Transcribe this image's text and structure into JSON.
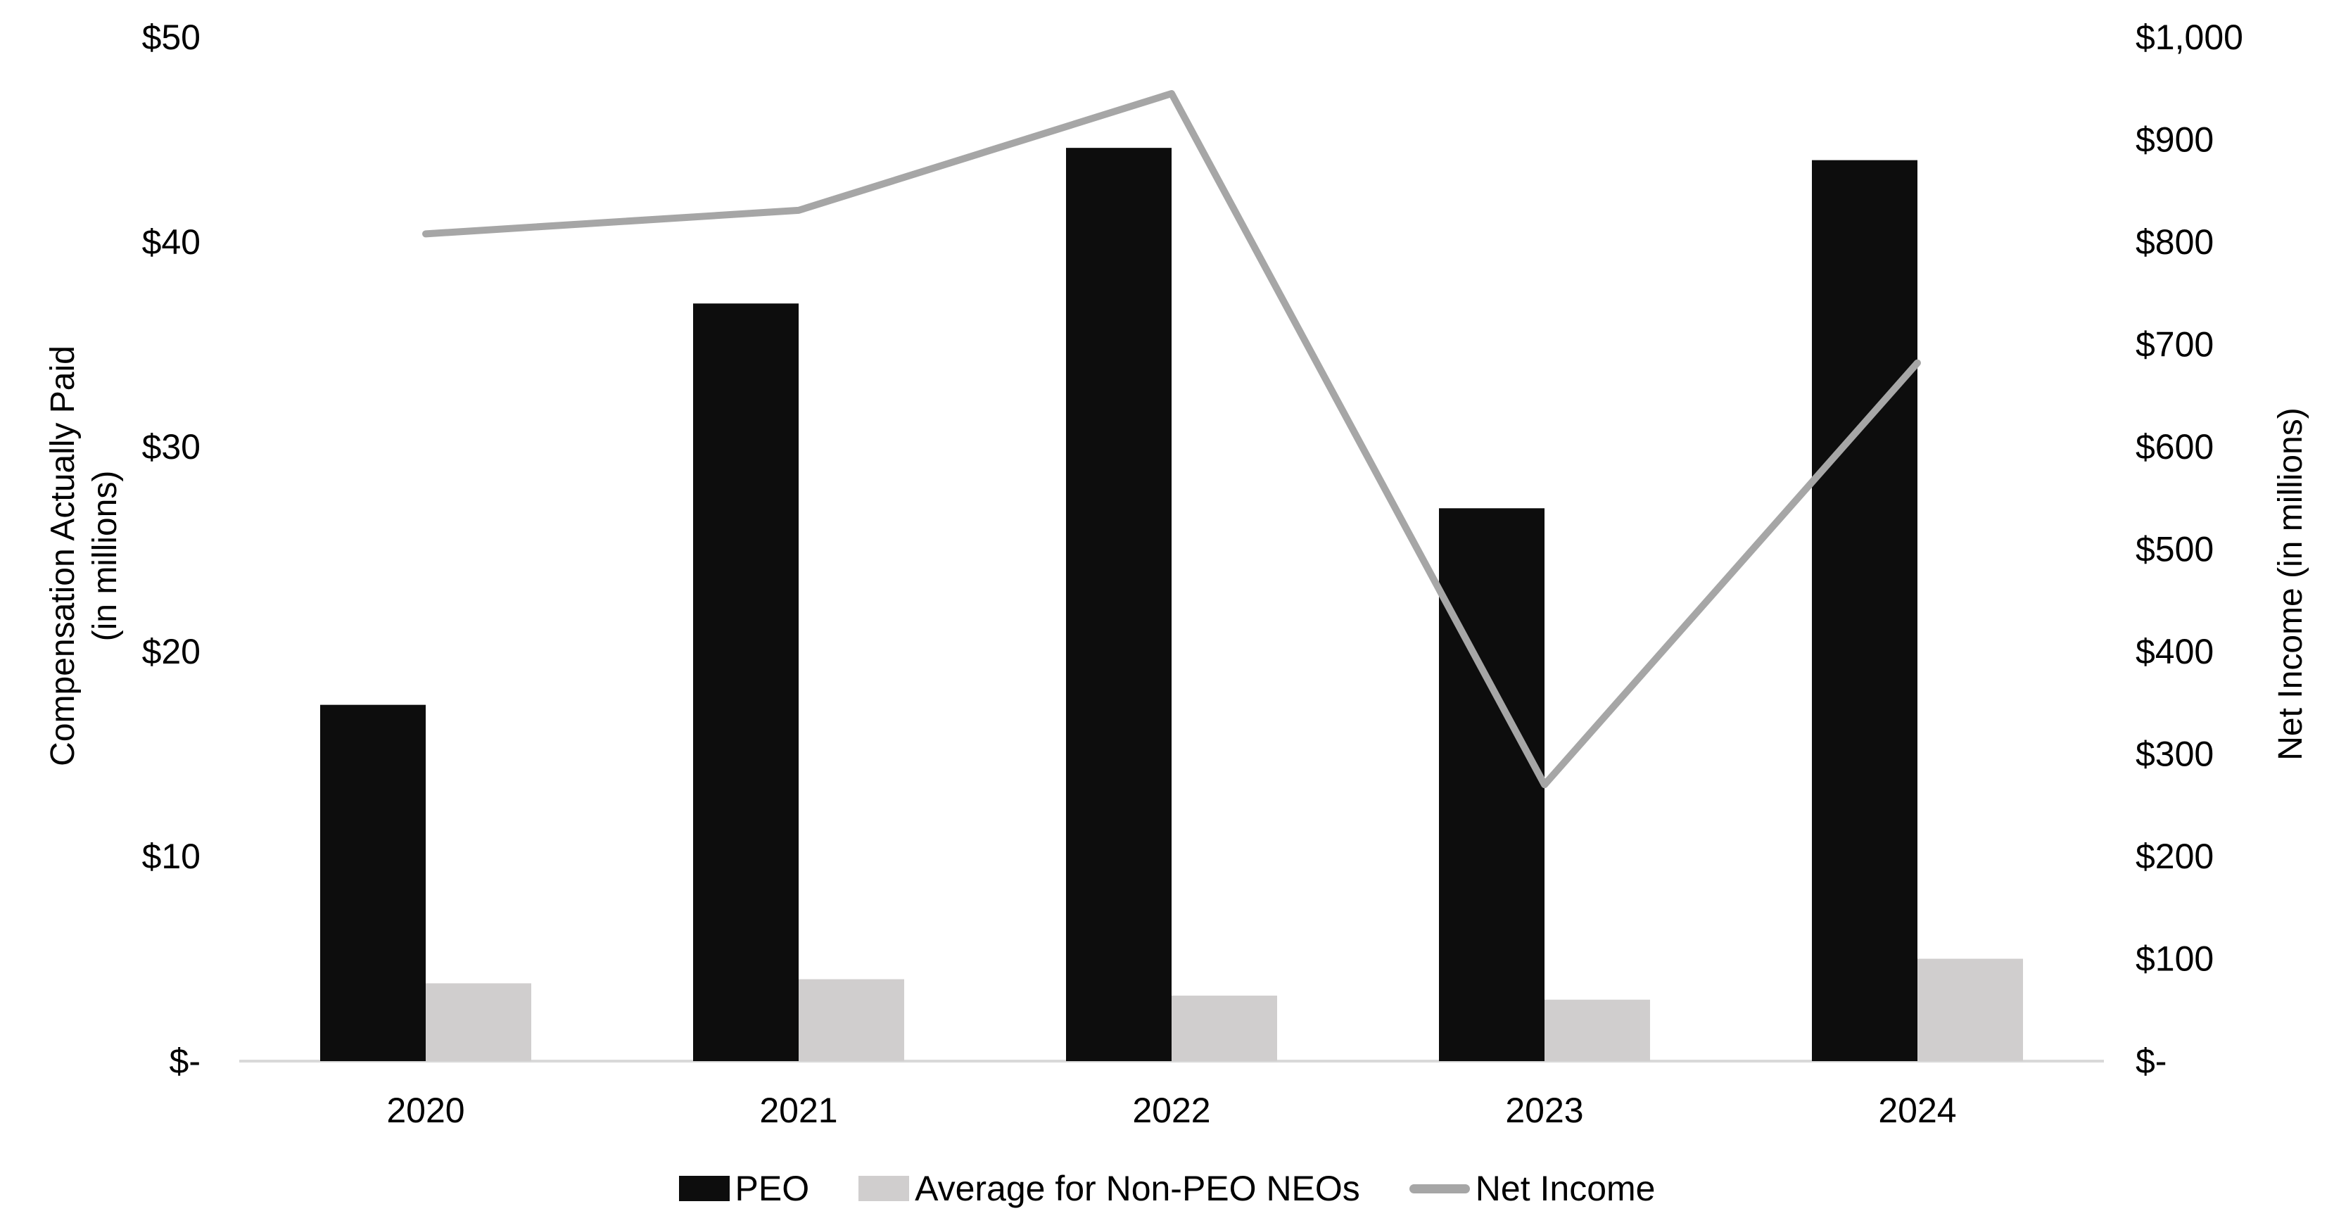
{
  "chart_data": {
    "type": "bar",
    "subtype": "grouped-bars-with-line-combo",
    "categories": [
      "2020",
      "2021",
      "2022",
      "2023",
      "2024"
    ],
    "series": [
      {
        "name": "PEO",
        "type": "bar",
        "axis": "left",
        "color": "#0d0d0d",
        "values": [
          17.4,
          37.0,
          44.6,
          27.0,
          44.0
        ]
      },
      {
        "name": "Average for Non-PEO NEOs",
        "type": "bar",
        "axis": "left",
        "color": "#d0cece",
        "values": [
          3.8,
          4.0,
          3.2,
          3.0,
          5.0
        ]
      },
      {
        "name": "Net Income",
        "type": "line",
        "axis": "right",
        "color": "#a6a6a6",
        "values": [
          808,
          831,
          945,
          270,
          682
        ]
      }
    ],
    "left_axis": {
      "title_line1": "Compensation Actually Paid",
      "title_line2": "(in millions)",
      "min": 0,
      "max": 50,
      "tick_labels": [
        "$50",
        "$40",
        "$30",
        "$20",
        "$10",
        "$-"
      ]
    },
    "right_axis": {
      "title": "Net Income (in millions)",
      "min": 0,
      "max": 1000,
      "tick_labels": [
        "$1,000",
        "$900",
        "$800",
        "$700",
        "$600",
        "$500",
        "$400",
        "$300",
        "$200",
        "$100",
        "$-"
      ]
    },
    "legend_position": "bottom",
    "grid": "off",
    "baseline_color": "#d9d9d9",
    "text_color": "#000000"
  }
}
